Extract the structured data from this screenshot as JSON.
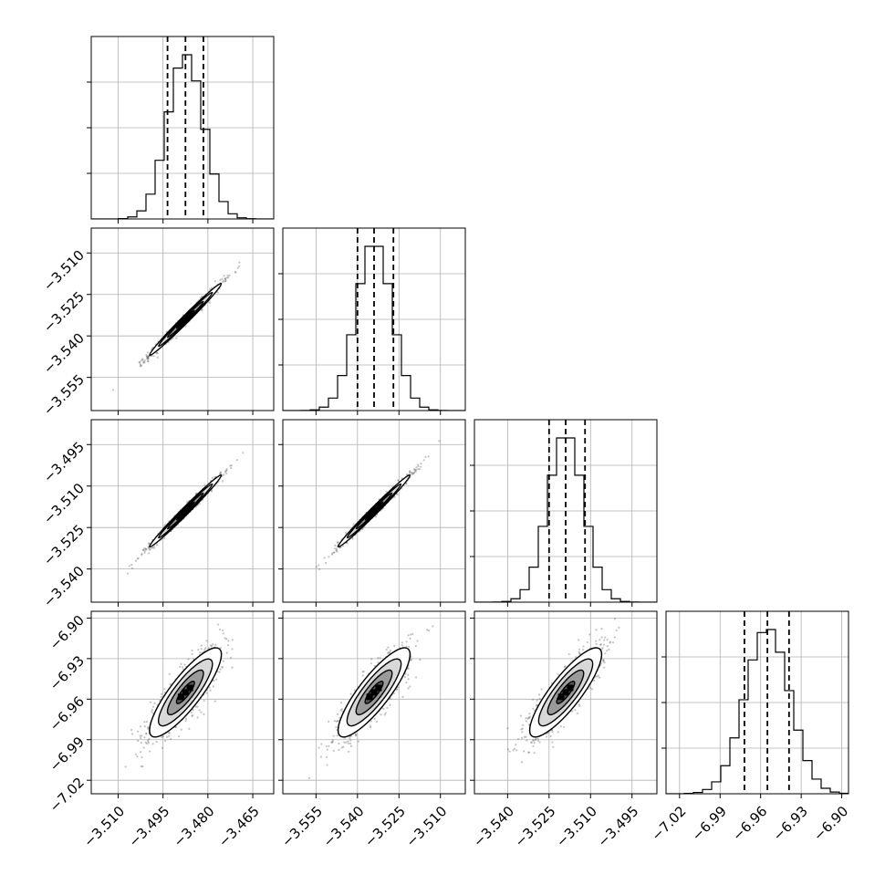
{
  "chart_data": {
    "type": "corner",
    "title": "",
    "grid": true,
    "n_params": 4,
    "parameters": [
      {
        "index": 0,
        "median": -3.4875,
        "q16": -3.4935,
        "q84": -3.4815,
        "std": 0.006,
        "range": [
          -3.519,
          -3.458
        ],
        "ticks": [
          -3.51,
          -3.495,
          -3.48,
          -3.465
        ],
        "tick_labels": [
          "−3.510",
          "−3.495",
          "−3.480",
          "−3.465"
        ]
      },
      {
        "index": 1,
        "median": -3.534,
        "q16": -3.54,
        "q84": -3.527,
        "std": 0.0065,
        "range": [
          -3.567,
          -3.501
        ],
        "ticks": [
          -3.555,
          -3.54,
          -3.525,
          -3.51
        ],
        "tick_labels": [
          "−3.555",
          "−3.540",
          "−3.525",
          "−3.510"
        ]
      },
      {
        "index": 2,
        "median": -3.519,
        "q16": -3.525,
        "q84": -3.512,
        "std": 0.0065,
        "range": [
          -3.552,
          -3.486
        ],
        "ticks": [
          -3.54,
          -3.525,
          -3.51,
          -3.495
        ],
        "tick_labels": [
          "−3.540",
          "−3.525",
          "−3.510",
          "−3.495"
        ]
      },
      {
        "index": 3,
        "median": -6.955,
        "q16": -6.972,
        "q84": -6.939,
        "std": 0.0165,
        "range": [
          -7.03,
          -6.895
        ],
        "ticks": [
          -7.02,
          -6.99,
          -6.96,
          -6.93,
          -6.9
        ],
        "tick_labels": [
          "−7.02",
          "−6.99",
          "−6.96",
          "−6.93",
          "−6.90"
        ]
      }
    ],
    "correlations": [
      [
        1.0,
        0.99,
        0.99,
        0.85
      ],
      [
        0.99,
        1.0,
        0.99,
        0.85
      ],
      [
        0.99,
        0.99,
        1.0,
        0.85
      ],
      [
        0.85,
        0.85,
        0.85,
        1.0
      ]
    ],
    "histogram_bins": 20,
    "contour_levels": [
      0.5,
      1.0,
      1.5,
      2.0
    ],
    "colors": {
      "line": "#000000",
      "grid": "#b0b0b0",
      "points": "#555555"
    }
  }
}
